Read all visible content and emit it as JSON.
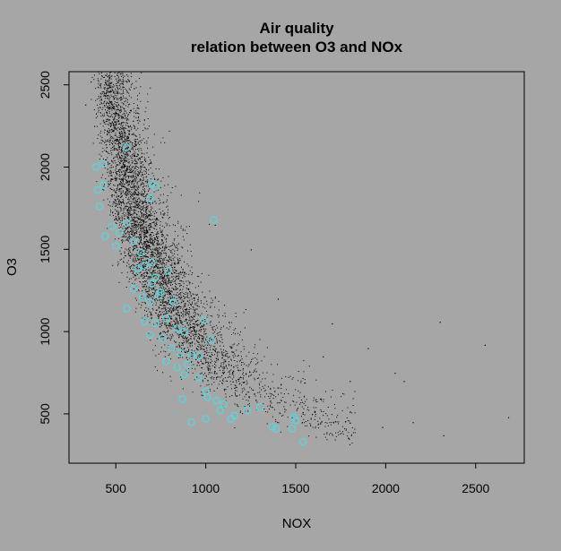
{
  "chart_data": {
    "type": "scatter",
    "title": "Air quality",
    "subtitle": "relation between O3 and NOx",
    "xlabel": "NOX",
    "ylabel": "O3",
    "xlim": [
      240,
      2770
    ],
    "ylim": [
      200,
      2580
    ],
    "x_ticks": [
      500,
      1000,
      1500,
      2000,
      2500
    ],
    "y_ticks": [
      500,
      1000,
      1500,
      2000,
      2500
    ],
    "grid": false,
    "legend": "none",
    "colors": {
      "background": "#a6a6a6",
      "points": "#000000",
      "highlight": "#5fd3d3"
    },
    "series": [
      {
        "values": [
          {
            "x": 360,
            "y": 2520
          },
          {
            "x": 410,
            "y": 2500
          },
          {
            "x": 330,
            "y": 2380
          },
          {
            "x": 470,
            "y": 2400
          },
          {
            "x": 560,
            "y": 2520
          },
          {
            "x": 600,
            "y": 2480
          },
          {
            "x": 380,
            "y": 2250
          },
          {
            "x": 450,
            "y": 2200
          },
          {
            "x": 520,
            "y": 2150
          },
          {
            "x": 1050,
            "y": 1650
          },
          {
            "x": 1250,
            "y": 1500
          },
          {
            "x": 1400,
            "y": 1200
          },
          {
            "x": 1700,
            "y": 1050
          },
          {
            "x": 1900,
            "y": 900
          },
          {
            "x": 2050,
            "y": 750
          },
          {
            "x": 2100,
            "y": 700
          },
          {
            "x": 2300,
            "y": 1060
          },
          {
            "x": 2550,
            "y": 920
          },
          {
            "x": 2320,
            "y": 370
          },
          {
            "x": 2680,
            "y": 480
          },
          {
            "x": 1800,
            "y": 700
          },
          {
            "x": 1650,
            "y": 850
          },
          {
            "x": 1980,
            "y": 420
          },
          {
            "x": 2150,
            "y": 450
          }
        ],
        "density_model": {
          "curve": "y = 600 * (1400 / x) ^ 1.3",
          "x_range": [
            320,
            2000
          ],
          "n_points": 6000
        }
      },
      {
        "values": [
          {
            "x": 390,
            "y": 2000
          },
          {
            "x": 430,
            "y": 2020
          },
          {
            "x": 400,
            "y": 1860
          },
          {
            "x": 430,
            "y": 1890
          },
          {
            "x": 410,
            "y": 1760
          },
          {
            "x": 560,
            "y": 2120
          },
          {
            "x": 700,
            "y": 1900
          },
          {
            "x": 720,
            "y": 1880
          },
          {
            "x": 690,
            "y": 1810
          },
          {
            "x": 1045,
            "y": 1680
          },
          {
            "x": 480,
            "y": 1640
          },
          {
            "x": 520,
            "y": 1600
          },
          {
            "x": 440,
            "y": 1580
          },
          {
            "x": 560,
            "y": 1660
          },
          {
            "x": 600,
            "y": 1550
          },
          {
            "x": 500,
            "y": 1520
          },
          {
            "x": 640,
            "y": 1480
          },
          {
            "x": 660,
            "y": 1400
          },
          {
            "x": 620,
            "y": 1380
          },
          {
            "x": 700,
            "y": 1420
          },
          {
            "x": 720,
            "y": 1330
          },
          {
            "x": 790,
            "y": 1370
          },
          {
            "x": 600,
            "y": 1260
          },
          {
            "x": 650,
            "y": 1210
          },
          {
            "x": 690,
            "y": 1180
          },
          {
            "x": 740,
            "y": 1220
          },
          {
            "x": 820,
            "y": 1180
          },
          {
            "x": 560,
            "y": 1140
          },
          {
            "x": 660,
            "y": 1060
          },
          {
            "x": 720,
            "y": 1050
          },
          {
            "x": 780,
            "y": 1080
          },
          {
            "x": 840,
            "y": 1020
          },
          {
            "x": 880,
            "y": 1000
          },
          {
            "x": 760,
            "y": 960
          },
          {
            "x": 690,
            "y": 980
          },
          {
            "x": 810,
            "y": 900
          },
          {
            "x": 860,
            "y": 870
          },
          {
            "x": 920,
            "y": 860
          },
          {
            "x": 960,
            "y": 850
          },
          {
            "x": 990,
            "y": 1070
          },
          {
            "x": 1030,
            "y": 950
          },
          {
            "x": 780,
            "y": 820
          },
          {
            "x": 840,
            "y": 780
          },
          {
            "x": 900,
            "y": 800
          },
          {
            "x": 880,
            "y": 740
          },
          {
            "x": 960,
            "y": 720
          },
          {
            "x": 1000,
            "y": 640
          },
          {
            "x": 1010,
            "y": 600
          },
          {
            "x": 870,
            "y": 590
          },
          {
            "x": 1060,
            "y": 580
          },
          {
            "x": 1080,
            "y": 520
          },
          {
            "x": 1140,
            "y": 470
          },
          {
            "x": 1160,
            "y": 490
          },
          {
            "x": 1230,
            "y": 520
          },
          {
            "x": 1000,
            "y": 470
          },
          {
            "x": 920,
            "y": 450
          },
          {
            "x": 1300,
            "y": 540
          },
          {
            "x": 1370,
            "y": 420
          },
          {
            "x": 1390,
            "y": 410
          },
          {
            "x": 1490,
            "y": 480
          },
          {
            "x": 1500,
            "y": 460
          },
          {
            "x": 1540,
            "y": 330
          },
          {
            "x": 1480,
            "y": 410
          },
          {
            "x": 1100,
            "y": 560
          },
          {
            "x": 750,
            "y": 1240
          },
          {
            "x": 700,
            "y": 1290
          }
        ]
      }
    ]
  }
}
